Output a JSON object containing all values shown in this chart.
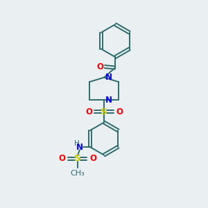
{
  "bg_color": "#eaeff2",
  "bond_color": "#2d6b6b",
  "N_color": "#0000ff",
  "O_color": "#ff0000",
  "S_color": "#cccc00",
  "H_color": "#2d6b6b",
  "figsize": [
    3.0,
    3.0
  ],
  "dpi": 100,
  "xlim": [
    0,
    10
  ],
  "ylim": [
    0,
    10
  ]
}
